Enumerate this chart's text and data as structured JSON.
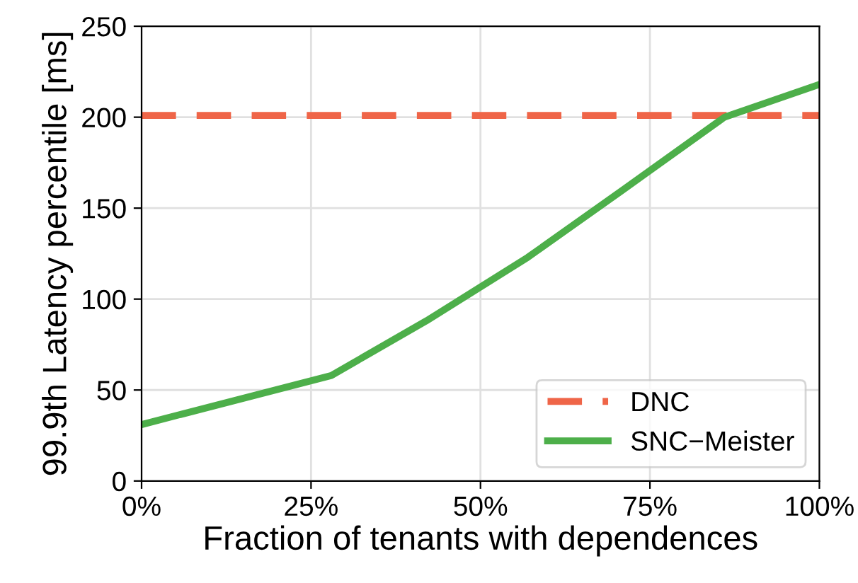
{
  "chart_data": {
    "type": "line",
    "xlabel": "Fraction of tenants with dependences",
    "ylabel": "99.9th Latency percentile [ms]",
    "xlim": [
      0,
      100
    ],
    "xticks": [
      {
        "value": 0,
        "label": "0%"
      },
      {
        "value": 25,
        "label": "25%"
      },
      {
        "value": 50,
        "label": "50%"
      },
      {
        "value": 75,
        "label": "75%"
      },
      {
        "value": 100,
        "label": "100%"
      }
    ],
    "ylim": [
      0,
      250
    ],
    "yticks": [
      0,
      50,
      100,
      150,
      200,
      250
    ],
    "grid": true,
    "legend": "bottom right",
    "series": [
      {
        "name": "DNC",
        "color": "#ef6548",
        "line_style": "dashed",
        "x": [
          0,
          100
        ],
        "values": [
          201,
          201
        ]
      },
      {
        "name": "SNC−Meister",
        "color": "#4daf4a",
        "line_style": "solid",
        "x": [
          0,
          28,
          42,
          57,
          71,
          86,
          100
        ],
        "values": [
          31,
          58,
          88,
          123,
          160,
          200,
          218
        ]
      }
    ]
  }
}
